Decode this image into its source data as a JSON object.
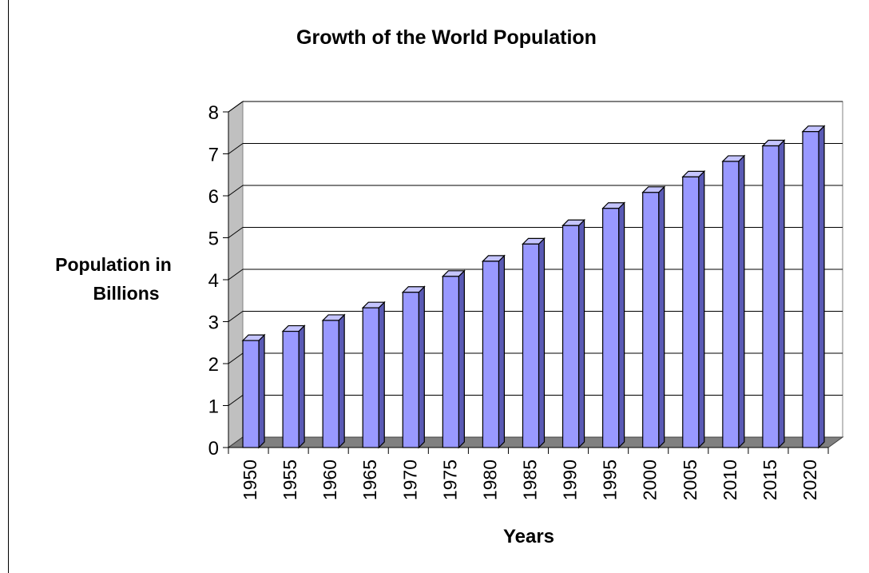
{
  "chart_data": {
    "type": "bar",
    "title": "Growth of the World Population",
    "xlabel": "Years",
    "ylabel_lines": [
      "Population in",
      "Billions"
    ],
    "categories": [
      "1950",
      "1955",
      "1960",
      "1965",
      "1970",
      "1975",
      "1980",
      "1985",
      "1990",
      "1995",
      "2000",
      "2005",
      "2010",
      "2015",
      "2020"
    ],
    "values": [
      2.55,
      2.77,
      3.03,
      3.33,
      3.7,
      4.08,
      4.44,
      4.85,
      5.29,
      5.7,
      6.08,
      6.45,
      6.82,
      7.19,
      7.53
    ],
    "yticks": [
      "0",
      "1",
      "2",
      "3",
      "4",
      "5",
      "6",
      "7",
      "8"
    ],
    "ylim": [
      0,
      8
    ],
    "grid": true,
    "legend": "none",
    "style": "3d-column",
    "colors": {
      "bar_front": "#9999ff",
      "bar_top": "#c4c4ff",
      "bar_side": "#5a5ab4",
      "floor": "#808080",
      "wall_left": "#c0c0c0",
      "grid": "#000000"
    }
  }
}
